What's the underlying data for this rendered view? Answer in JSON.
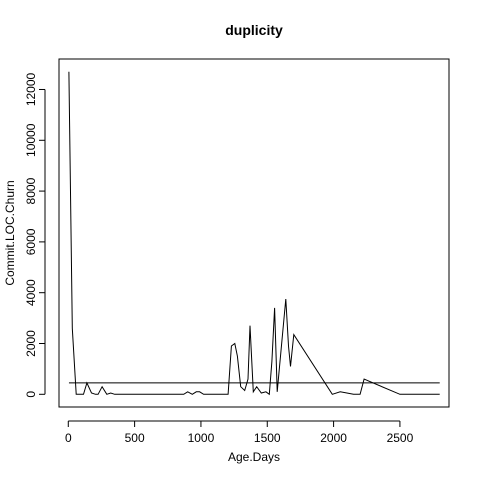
{
  "chart_data": {
    "type": "line",
    "title": "duplicity",
    "xlabel": "Age.Days",
    "ylabel": "Commit.LOC.Churn",
    "xlim": [
      -70,
      2870
    ],
    "ylim": [
      -500,
      13200
    ],
    "xticks": [
      0,
      500,
      1000,
      1500,
      2000,
      2500
    ],
    "yticks": [
      0,
      2000,
      4000,
      6000,
      8000,
      10000,
      12000
    ],
    "grid": false,
    "series": [
      {
        "x": [
          5,
          30,
          60,
          90,
          115,
          140,
          175,
          205,
          225,
          255,
          290,
          320,
          350,
          400,
          450,
          500,
          550,
          600,
          650,
          700,
          750,
          800,
          840,
          870,
          900,
          935,
          965,
          990,
          1020,
          1050,
          1080,
          1110,
          1140,
          1175,
          1205,
          1230,
          1255,
          1275,
          1300,
          1330,
          1355,
          1370,
          1395,
          1420,
          1455,
          1490,
          1515,
          1535,
          1555,
          1575,
          1605,
          1640,
          1660,
          1675,
          1700,
          1990,
          2050,
          2100,
          2150,
          2200,
          2230,
          2500,
          2800
        ],
        "y": [
          12700,
          2600,
          0,
          0,
          0,
          450,
          50,
          0,
          0,
          300,
          0,
          50,
          0,
          0,
          0,
          0,
          0,
          0,
          0,
          0,
          0,
          0,
          0,
          0,
          100,
          0,
          100,
          100,
          0,
          0,
          0,
          0,
          0,
          0,
          0,
          1900,
          2000,
          1500,
          300,
          150,
          600,
          2700,
          100,
          300,
          50,
          100,
          0,
          1300,
          3400,
          100,
          1800,
          3750,
          1900,
          1100,
          2350,
          0,
          100,
          50,
          0,
          0,
          600,
          0,
          0
        ]
      }
    ],
    "reference_line": {
      "y": 450
    }
  }
}
